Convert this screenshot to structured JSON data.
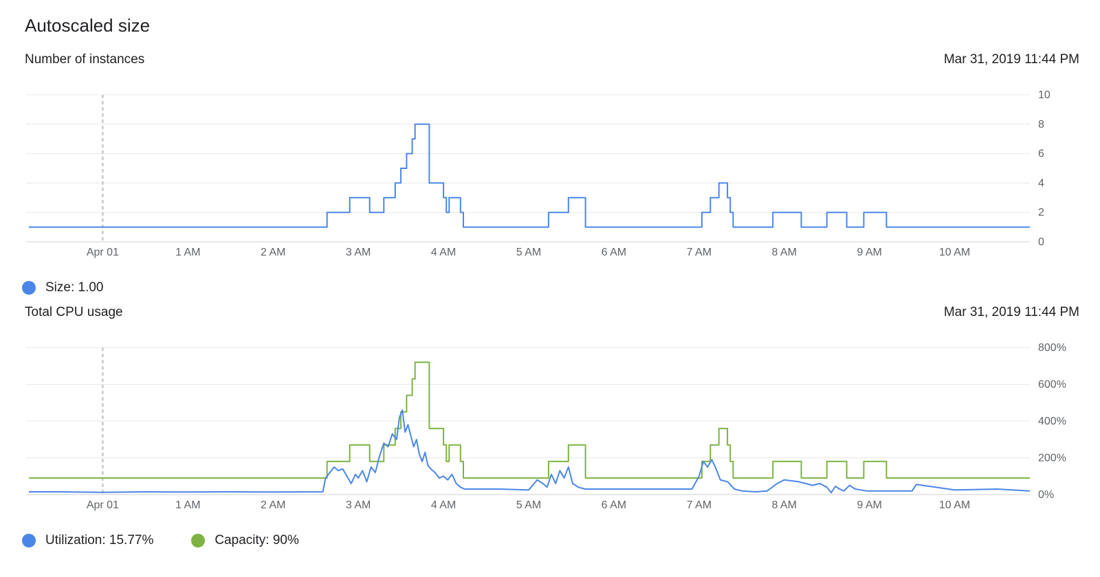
{
  "page": {
    "title": "Autoscaled size"
  },
  "colors": {
    "size": "#4a86e8",
    "utilization": "#4a86e8",
    "capacity": "#7cb342",
    "grid": "#e8e8e8",
    "axis_text": "#5f6368"
  },
  "chart_data": [
    {
      "type": "line",
      "title": "Number of instances",
      "timestamp": "Mar 31, 2019 11:44 PM",
      "x_ticks": [
        "Apr 01",
        "1 AM",
        "2 AM",
        "3 AM",
        "4 AM",
        "5 AM",
        "6 AM",
        "7 AM",
        "8 AM",
        "9 AM",
        "10 AM"
      ],
      "x_range": [
        "23:08",
        "10:53"
      ],
      "y_ticks": [
        "0",
        "2",
        "4",
        "6",
        "8",
        "10"
      ],
      "ylim": [
        0,
        10
      ],
      "marker_x": "Apr 01",
      "grid": true,
      "legend": [
        {
          "label": "Size: 1.00",
          "color": "#4a86e8"
        }
      ],
      "series": [
        {
          "name": "Size",
          "x": [
            "23:08",
            "02:36",
            "02:38",
            "02:40",
            "02:54",
            "02:56",
            "02:58",
            "03:06",
            "03:08",
            "03:10",
            "03:16",
            "03:18",
            "03:20",
            "03:24",
            "03:26",
            "03:28",
            "03:30",
            "03:32",
            "03:34",
            "03:36",
            "03:38",
            "03:40",
            "03:48",
            "03:50",
            "03:58",
            "04:00",
            "04:02",
            "04:04",
            "04:10",
            "04:12",
            "04:14",
            "04:16",
            "05:12",
            "05:14",
            "05:26",
            "05:28",
            "05:38",
            "05:40",
            "07:00",
            "07:02",
            "07:06",
            "07:08",
            "07:10",
            "07:14",
            "07:16",
            "07:20",
            "07:22",
            "07:24",
            "07:26",
            "07:50",
            "07:52",
            "08:10",
            "08:12",
            "08:28",
            "08:30",
            "08:32",
            "08:44",
            "08:46",
            "08:56",
            "08:58",
            "09:12",
            "09:14",
            "10:53"
          ],
          "values": [
            1,
            1,
            2,
            2,
            3,
            3,
            3,
            3,
            2,
            2,
            2,
            3,
            3,
            3,
            4,
            4,
            5,
            5,
            6,
            6,
            7,
            8,
            8,
            4,
            4,
            3,
            2,
            3,
            3,
            2,
            1,
            1,
            1,
            2,
            2,
            3,
            3,
            1,
            1,
            2,
            2,
            3,
            3,
            4,
            4,
            3,
            2,
            1,
            1,
            1,
            2,
            2,
            1,
            1,
            2,
            2,
            1,
            1,
            2,
            2,
            1,
            1,
            1
          ]
        }
      ]
    },
    {
      "type": "line",
      "title": "Total CPU usage",
      "timestamp": "Mar 31, 2019 11:44 PM",
      "x_ticks": [
        "Apr 01",
        "1 AM",
        "2 AM",
        "3 AM",
        "4 AM",
        "5 AM",
        "6 AM",
        "7 AM",
        "8 AM",
        "9 AM",
        "10 AM"
      ],
      "x_range": [
        "23:08",
        "10:53"
      ],
      "y_ticks": [
        "0%",
        "200%",
        "400%",
        "600%",
        "800%"
      ],
      "ylim": [
        0,
        800
      ],
      "marker_x": "Apr 01",
      "grid": true,
      "legend": [
        {
          "label": "Utilization: 15.77%",
          "color": "#4a86e8"
        },
        {
          "label": "Capacity: 90%",
          "color": "#7cb342"
        }
      ],
      "series": [
        {
          "name": "Capacity",
          "color": "#7cb342",
          "x": [
            "23:08",
            "02:36",
            "02:38",
            "02:40",
            "02:54",
            "02:56",
            "02:58",
            "03:06",
            "03:08",
            "03:10",
            "03:16",
            "03:18",
            "03:20",
            "03:24",
            "03:26",
            "03:28",
            "03:30",
            "03:32",
            "03:34",
            "03:36",
            "03:38",
            "03:40",
            "03:48",
            "03:50",
            "03:58",
            "04:00",
            "04:02",
            "04:04",
            "04:10",
            "04:12",
            "04:14",
            "04:16",
            "05:12",
            "05:14",
            "05:26",
            "05:28",
            "05:38",
            "05:40",
            "07:00",
            "07:02",
            "07:06",
            "07:08",
            "07:10",
            "07:14",
            "07:16",
            "07:20",
            "07:22",
            "07:24",
            "07:26",
            "07:50",
            "07:52",
            "08:10",
            "08:12",
            "08:28",
            "08:30",
            "08:32",
            "08:44",
            "08:46",
            "08:56",
            "08:58",
            "09:12",
            "09:14",
            "10:53"
          ],
          "values": [
            90,
            90,
            180,
            180,
            270,
            270,
            270,
            270,
            180,
            180,
            180,
            270,
            270,
            270,
            360,
            360,
            450,
            450,
            540,
            540,
            630,
            720,
            720,
            360,
            360,
            270,
            180,
            270,
            270,
            180,
            90,
            90,
            90,
            180,
            180,
            270,
            270,
            90,
            90,
            180,
            180,
            270,
            270,
            360,
            360,
            270,
            180,
            90,
            90,
            90,
            180,
            180,
            90,
            90,
            180,
            180,
            90,
            90,
            180,
            180,
            90,
            90,
            90
          ]
        },
        {
          "name": "Utilization",
          "color": "#4a86e8",
          "x": [
            "23:08",
            "23:30",
            "00:00",
            "00:30",
            "01:00",
            "01:30",
            "02:00",
            "02:35",
            "02:37",
            "02:40",
            "02:43",
            "02:46",
            "02:49",
            "02:52",
            "02:55",
            "02:58",
            "03:00",
            "03:03",
            "03:06",
            "03:09",
            "03:12",
            "03:15",
            "03:18",
            "03:21",
            "03:24",
            "03:27",
            "03:29",
            "03:31",
            "03:33",
            "03:35",
            "03:37",
            "03:39",
            "03:41",
            "03:43",
            "03:45",
            "03:47",
            "03:49",
            "03:51",
            "03:54",
            "03:57",
            "04:00",
            "04:03",
            "04:06",
            "04:09",
            "04:12",
            "04:15",
            "04:20",
            "04:40",
            "05:00",
            "05:06",
            "05:10",
            "05:13",
            "05:16",
            "05:19",
            "05:22",
            "05:25",
            "05:28",
            "05:31",
            "05:35",
            "05:40",
            "06:00",
            "06:30",
            "06:55",
            "07:00",
            "07:03",
            "07:06",
            "07:09",
            "07:12",
            "07:15",
            "07:20",
            "07:25",
            "07:30",
            "07:40",
            "07:48",
            "07:55",
            "08:00",
            "08:10",
            "08:15",
            "08:20",
            "08:25",
            "08:30",
            "08:33",
            "08:36",
            "08:39",
            "08:42",
            "08:46",
            "08:50",
            "08:58",
            "09:30",
            "09:33",
            "10:00",
            "10:30",
            "10:53"
          ],
          "values": [
            15,
            15,
            12,
            15,
            14,
            15,
            14,
            15,
            90,
            120,
            150,
            130,
            140,
            100,
            60,
            110,
            90,
            130,
            70,
            150,
            120,
            210,
            280,
            260,
            330,
            300,
            420,
            460,
            340,
            380,
            320,
            260,
            300,
            220,
            180,
            230,
            160,
            140,
            120,
            90,
            100,
            80,
            110,
            60,
            40,
            30,
            30,
            30,
            25,
            80,
            60,
            40,
            110,
            60,
            130,
            90,
            150,
            60,
            40,
            30,
            30,
            30,
            30,
            100,
            180,
            150,
            190,
            140,
            80,
            70,
            30,
            20,
            15,
            20,
            60,
            80,
            70,
            60,
            50,
            60,
            40,
            10,
            45,
            30,
            20,
            50,
            30,
            20,
            20,
            55,
            25,
            30,
            20
          ]
        }
      ]
    }
  ]
}
